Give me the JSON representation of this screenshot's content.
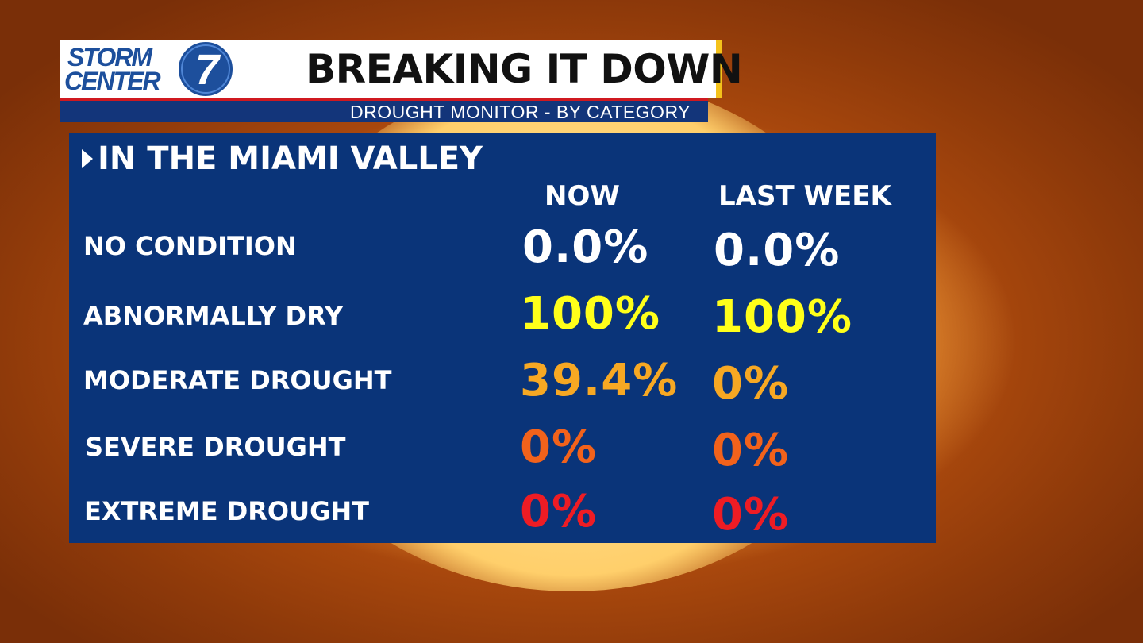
{
  "header": {
    "logo_line1": "STORM",
    "logo_line2": "CENTER",
    "logo_number": "7",
    "title": "BREAKING IT DOWN",
    "subtitle": "DROUGHT MONITOR - BY CATEGORY"
  },
  "panel": {
    "heading": "IN THE MIAMI VALLEY",
    "columns": [
      "NOW",
      "LAST WEEK"
    ],
    "rows": [
      {
        "label": "NO CONDITION",
        "now": "0.0%",
        "last_week": "0.0%",
        "color": "#ffffff"
      },
      {
        "label": "ABNORMALLY DRY",
        "now": "100%",
        "last_week": "100%",
        "color": "#ffff1a"
      },
      {
        "label": "MODERATE DROUGHT",
        "now": "39.4%",
        "last_week": "0%",
        "color": "#f7a823"
      },
      {
        "label": "SEVERE DROUGHT",
        "now": "0%",
        "last_week": "0%",
        "color": "#f2621b"
      },
      {
        "label": "EXTREME DROUGHT",
        "now": "0%",
        "last_week": "0%",
        "color": "#ee1c24"
      }
    ]
  },
  "colors": {
    "panel_bg": "#0a3479",
    "header_accent": "#f4c21a",
    "logo_blue": "#1d4f9c"
  }
}
